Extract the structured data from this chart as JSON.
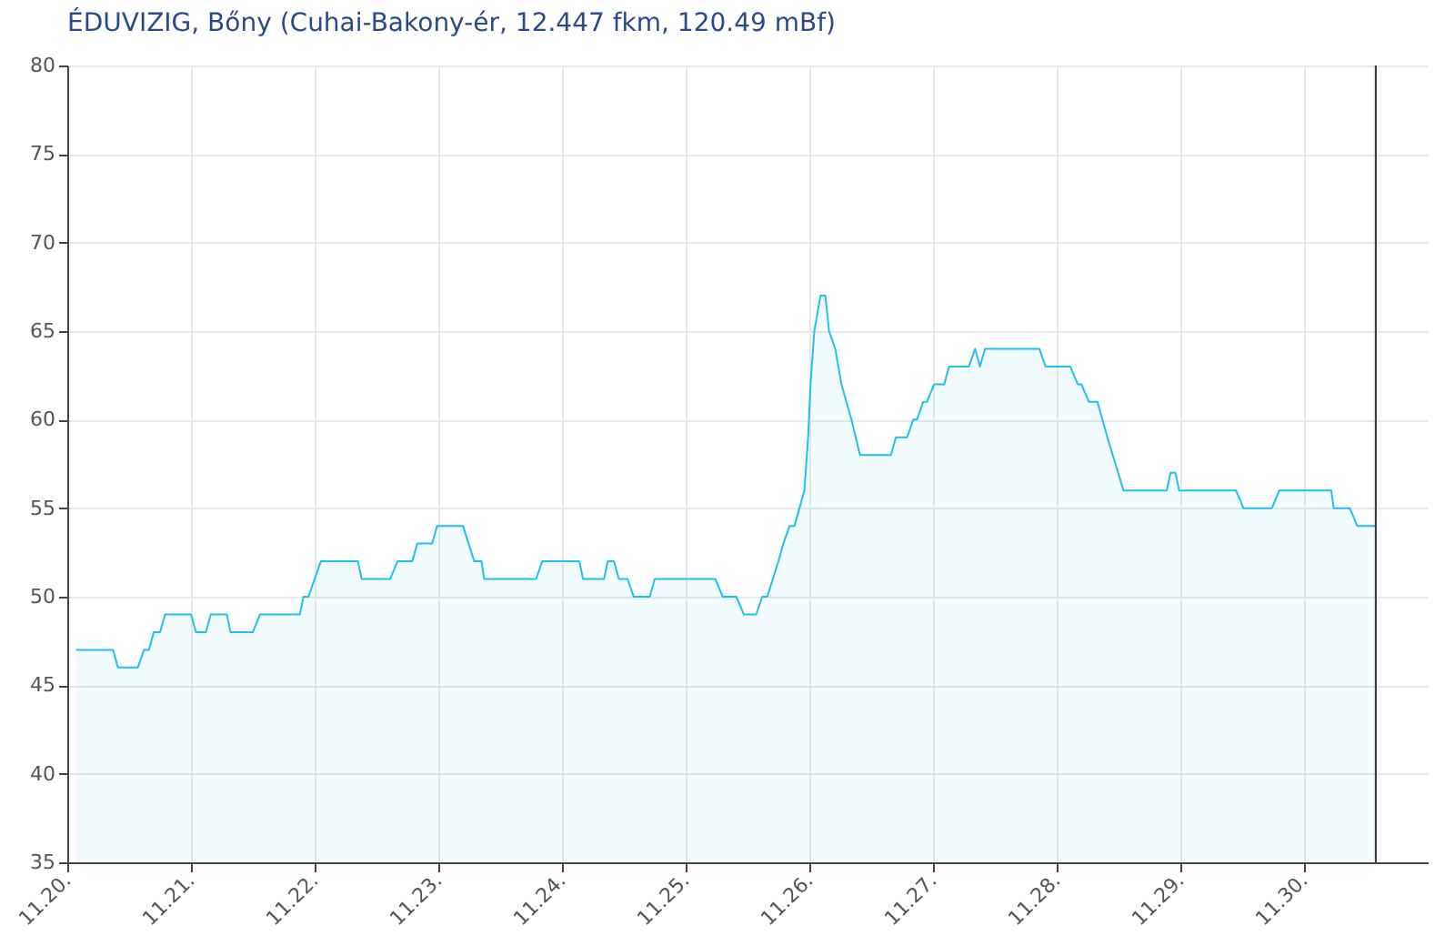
{
  "chart_data": {
    "type": "area",
    "title": "ÉDUVIZIG, Bőny (Cuhai-Bakony-ér, 12.447 fkm, 120.49 mBf)",
    "x": [
      "--11-20T01:41",
      "--11-20T08:53",
      "--11-20T09:50",
      "--11-20T13:41",
      "--11-20T14:53",
      "--11-20T15:50",
      "--11-20T16:48",
      "--11-20T18:00",
      "--11-20T18:58",
      "--11-21T00:00",
      "--11-21T00:58",
      "--11-21T02:53",
      "--11-21T03:50",
      "--11-21T06:58",
      "--11-21T07:41",
      "--11-21T12:00",
      "--11-21T13:26",
      "--11-21T21:07",
      "--11-21T21:50",
      "--11-21T22:48",
      "--11-22T01:12",
      "--11-22T08:24",
      "--11-22T09:07",
      "--11-22T14:38",
      "--11-22T16:05",
      "--11-22T18:58",
      "--11-22T19:55",
      "--11-22T22:48",
      "--11-22T23:46",
      "--11-23T04:48",
      "--11-23T06:58",
      "--11-23T08:24",
      "--11-23T08:53",
      "--11-23T18:58",
      "--11-23T20:10",
      "--11-24T03:22",
      "--11-24T04:05",
      "--11-24T08:10",
      "--11-24T08:53",
      "--11-24T10:05",
      "--11-24T11:02",
      "--11-24T12:43",
      "--11-24T13:55",
      "--11-24T17:02",
      "--11-24T18:00",
      "--11-25T05:46",
      "--11-25T07:12",
      "--11-25T09:50",
      "--11-25T11:17",
      "--11-25T13:41",
      "--11-25T14:53",
      "--11-25T15:50",
      "--11-25T18:00",
      "--11-25T18:58",
      "--11-25T20:10",
      "--11-25T21:07",
      "--11-25T23:02",
      "--11-25T23:46",
      "--11-26T00:14",
      "--11-26T00:58",
      "--11-26T02:10",
      "--11-26T03:07",
      "--11-26T03:50",
      "--11-26T05:02",
      "--11-26T06:14",
      "--11-26T08:10",
      "--11-26T09:50",
      "--11-26T15:50",
      "--11-26T16:48",
      "--11-26T18:58",
      "--11-26T20:10",
      "--11-26T20:53",
      "--11-26T22:05",
      "--11-26T22:48",
      "--11-27T00:14",
      "--11-27T02:10",
      "--11-27T03:07",
      "--11-27T06:58",
      "--11-27T08:10",
      "--11-27T09:07",
      "--11-27T10:05",
      "--11-27T20:38",
      "--11-27T21:50",
      "--11-28T02:38",
      "--11-28T04:05",
      "--11-28T04:48",
      "--11-28T06:14",
      "--11-28T07:55",
      "--11-28T09:50",
      "--11-28T12:58",
      "--11-28T21:22",
      "--11-28T22:05",
      "--11-28T23:02",
      "--11-28T23:46",
      "--11-29T10:48",
      "--11-29T12:14",
      "--11-29T17:46",
      "--11-29T19:12",
      "--11-30T05:17",
      "--11-30T05:46",
      "--11-30T08:53",
      "--11-30T10:19",
      "--11-30T13:55"
    ],
    "series": [
      {
        "color": "#1ec0f0",
        "values": [
          47,
          47,
          46,
          46,
          47,
          47,
          48,
          48,
          49,
          49,
          48,
          48,
          49,
          49,
          48,
          48,
          49,
          49,
          50,
          50,
          52,
          52,
          51,
          51,
          52,
          52,
          53,
          53,
          54,
          54,
          52,
          52,
          51,
          51,
          52,
          52,
          51,
          51,
          52,
          52,
          51,
          51,
          50,
          50,
          51,
          51,
          50,
          50,
          49,
          49,
          50,
          50,
          52,
          53,
          54,
          54,
          56,
          59,
          62,
          65,
          67,
          67,
          65,
          64,
          62,
          60,
          58,
          58,
          59,
          59,
          60,
          60,
          61,
          61,
          62,
          62,
          63,
          63,
          64,
          63,
          64,
          64,
          63,
          63,
          62,
          62,
          61,
          61,
          59,
          56,
          56,
          57,
          57,
          56,
          56,
          55,
          55,
          56,
          56,
          55,
          55,
          54,
          54
        ]
      }
    ],
    "xlim": [
      "--11-20",
      "--12-01"
    ],
    "xticks": [
      {
        "value": "--11-20",
        "label": "11.20."
      },
      {
        "value": "--11-21",
        "label": "11.21."
      },
      {
        "value": "--11-22",
        "label": "11.22."
      },
      {
        "value": "--11-23",
        "label": "11.23."
      },
      {
        "value": "--11-24",
        "label": "11.24."
      },
      {
        "value": "--11-25",
        "label": "11.25."
      },
      {
        "value": "--11-26",
        "label": "11.26."
      },
      {
        "value": "--11-27",
        "label": "11.27."
      },
      {
        "value": "--11-28",
        "label": "11.28."
      },
      {
        "value": "--11-29",
        "label": "11.29."
      },
      {
        "value": "--11-30",
        "label": "11.30."
      }
    ],
    "ylim": [
      35,
      80
    ],
    "yticks": [
      35,
      40,
      45,
      50,
      55,
      60,
      65,
      70,
      75,
      80
    ],
    "grid": true,
    "ref_lines": [
      {
        "axis": "x",
        "value": "--11-30T13:55",
        "color": "#333333"
      }
    ]
  }
}
